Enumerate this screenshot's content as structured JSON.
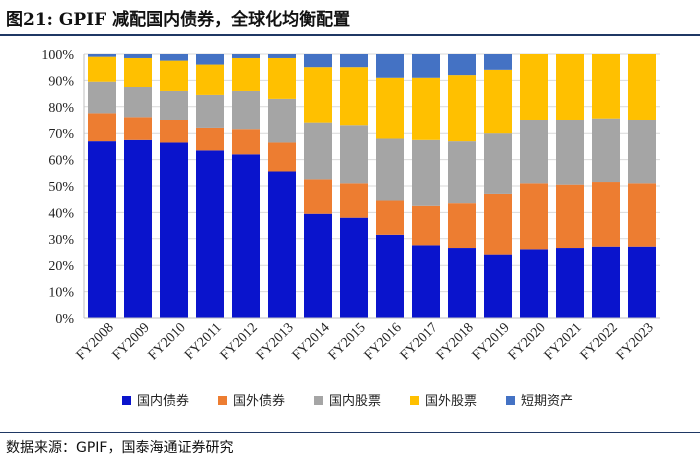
{
  "figure": {
    "title": "图21:  GPIF 减配国内债券，全球化均衡配置",
    "source": "数据来源：GPIF，国泰海通证券研究"
  },
  "chart_data": {
    "type": "bar",
    "stacked": true,
    "title": "GPIF 减配国内债券，全球化均衡配置",
    "xlabel": "",
    "ylabel": "",
    "ylim": [
      0,
      100
    ],
    "y_ticks": [
      "0%",
      "10%",
      "20%",
      "30%",
      "40%",
      "50%",
      "60%",
      "70%",
      "80%",
      "90%",
      "100%"
    ],
    "categories": [
      "FY2008",
      "FY2009",
      "FY2010",
      "FY2011",
      "FY2012",
      "FY2013",
      "FY2014",
      "FY2015",
      "FY2016",
      "FY2017",
      "FY2018",
      "FY2019",
      "FY2020",
      "FY2021",
      "FY2022",
      "FY2023"
    ],
    "legend_position": "bottom",
    "series": [
      {
        "name": "国内债券",
        "color": "#0a14cc",
        "values": [
          67,
          67.5,
          66.5,
          63.5,
          62,
          55.5,
          39.5,
          38,
          31.5,
          27.5,
          26.5,
          24,
          26,
          26.5,
          27,
          27
        ]
      },
      {
        "name": "国外债券",
        "color": "#ed7d31",
        "values": [
          10.5,
          8.5,
          8.5,
          8.5,
          9.5,
          11,
          13,
          13,
          13,
          15,
          17,
          23,
          25,
          24,
          24.5,
          24
        ]
      },
      {
        "name": "国内股票",
        "color": "#a5a5a5",
        "values": [
          12,
          11.5,
          11,
          12.5,
          14.5,
          16.5,
          21.5,
          22,
          23.5,
          25,
          23.5,
          23,
          24,
          24.5,
          24,
          24
        ]
      },
      {
        "name": "国外股票",
        "color": "#ffc000",
        "values": [
          9.5,
          11,
          11.5,
          11.5,
          12.5,
          15.5,
          21,
          22,
          23,
          23.5,
          25,
          24,
          25,
          25,
          24.5,
          25
        ]
      },
      {
        "name": "短期资产",
        "color": "#4472c4",
        "values": [
          1,
          1.5,
          2.5,
          4,
          1.5,
          1.5,
          5,
          5,
          9,
          9,
          8,
          6,
          0,
          0,
          0,
          0
        ]
      }
    ]
  }
}
